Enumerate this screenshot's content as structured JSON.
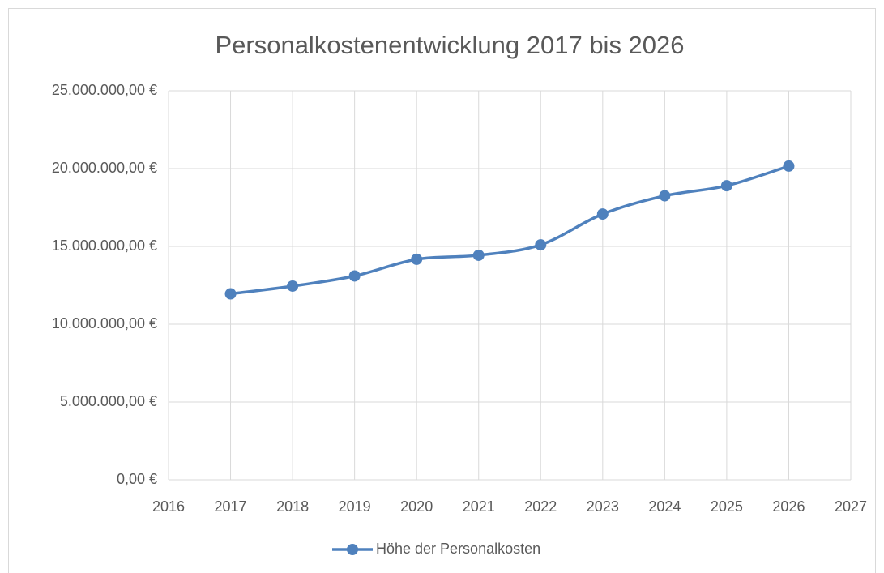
{
  "chart_data": {
    "type": "line",
    "title": "Personalkostenentwicklung 2017 bis 2026",
    "x": [
      2017,
      2018,
      2019,
      2020,
      2021,
      2022,
      2023,
      2024,
      2025,
      2026
    ],
    "series": [
      {
        "name": "Höhe der Personalkosten",
        "color": "#4f81bd",
        "values": [
          11950000,
          12450000,
          13100000,
          14170000,
          14430000,
          15100000,
          17080000,
          18250000,
          18900000,
          20160000
        ]
      }
    ],
    "xlim": [
      2016,
      2027
    ],
    "xticks": [
      2016,
      2017,
      2018,
      2019,
      2020,
      2021,
      2022,
      2023,
      2024,
      2025,
      2026,
      2027
    ],
    "ylim": [
      0,
      25000000
    ],
    "yticks": [
      {
        "value": 0,
        "label": "0,00 €"
      },
      {
        "value": 5000000,
        "label": "5.000.000,00 €"
      },
      {
        "value": 10000000,
        "label": "10.000.000,00 €"
      },
      {
        "value": 15000000,
        "label": "15.000.000,00 €"
      },
      {
        "value": 20000000,
        "label": "20.000.000,00 €"
      },
      {
        "value": 25000000,
        "label": "25.000.000,00 €"
      }
    ],
    "grid": true,
    "smooth": true,
    "legend": "bottom"
  }
}
